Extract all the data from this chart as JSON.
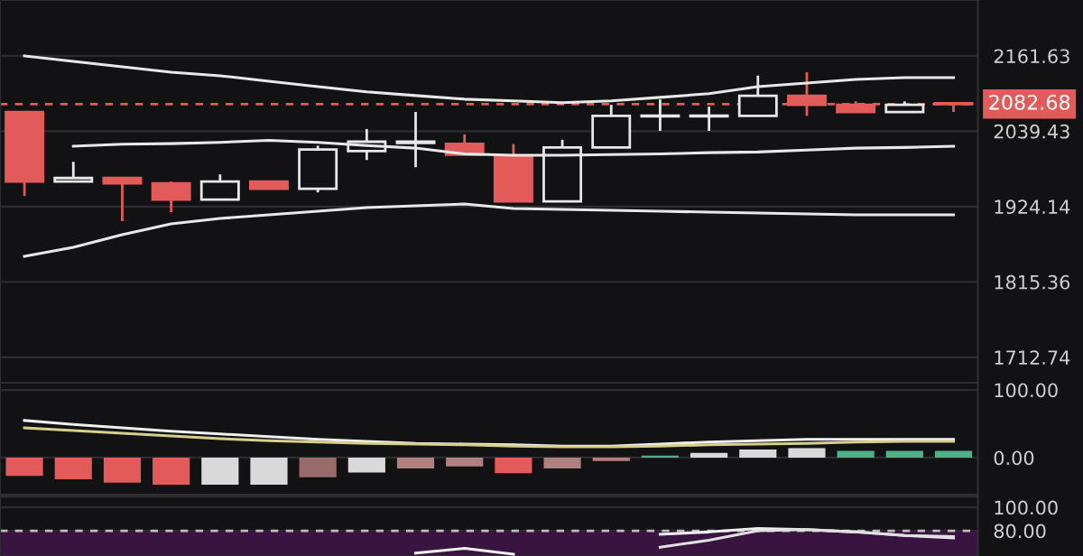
{
  "chart_data": [
    {
      "type": "candlestick",
      "categories": [
        null,
        null,
        null,
        null,
        null,
        null,
        null,
        null,
        null,
        null,
        null,
        null,
        null,
        null,
        null,
        null,
        null,
        null,
        null,
        null
      ],
      "ohlc": [
        [
          2070,
          2070,
          1940,
          1961.6
        ],
        [
          1961.6,
          1991.8,
          1961.6,
          1967
        ],
        [
          1967,
          1967,
          1902.5,
          1958.9
        ],
        [
          1958.9,
          1961.6,
          1915.8,
          1934.5
        ],
        [
          1934.5,
          1972.5,
          1934.5,
          1961.6
        ],
        [
          1961.6,
          1961.6,
          1950.7,
          1950.7
        ],
        [
          1950.7,
          2016.7,
          1945.3,
          2011
        ],
        [
          2008.5,
          2043,
          1994.6,
          2023
        ],
        [
          2021,
          2070,
          1983.5,
          2023
        ],
        [
          2019.5,
          2034.6,
          2003,
          2003
        ],
        [
          2000,
          2019.5,
          1931.8,
          1931.8
        ],
        [
          1931.8,
          2026,
          1931.8,
          2013.9
        ],
        [
          2013.9,
          2081.4,
          2013.9,
          2063.7
        ],
        [
          2063,
          2090,
          2040,
          2064
        ],
        [
          2063,
          2078.5,
          2040,
          2064
        ],
        [
          2063.7,
          2129,
          2063.7,
          2096
        ],
        [
          2096,
          2134.6,
          2063.7,
          2081.4
        ],
        [
          2081.4,
          2087,
          2070,
          2070
        ],
        [
          2070,
          2087,
          2070,
          2081.4
        ],
        [
          2084,
          2084,
          2070,
          2082.68
        ]
      ],
      "colors": [
        "#e35a5a",
        "#e8e8e8",
        "#e35a5a",
        "#e35a5a",
        "#e8e8e8",
        "#e35a5a",
        "#e8e8e8",
        "#e8e8e8",
        "#e8e8e8",
        "#e35a5a",
        "#e35a5a",
        "#e8e8e8",
        "#e8e8e8",
        "#e8e8e8",
        "#e8e8e8",
        "#e8e8e8",
        "#e35a5a",
        "#e35a5a",
        "#e8e8e8",
        "#e35a5a"
      ],
      "series": [
        {
          "type": "line",
          "color": "#e8e8e8",
          "values": [
            2161.6,
            2152.6,
            2143.6,
            2134.6,
            2128.7,
            2119.8,
            2111,
            2102.3,
            2096.4,
            2090.6,
            2087.7,
            2084.8,
            2087.7,
            2093.5,
            2099.4,
            2111,
            2116.9,
            2122.7,
            2125.7,
            2125.7
          ]
        },
        {
          "type": "line",
          "color": "#e8e8e8",
          "values": [
            null,
            2016,
            2019,
            2020,
            2022,
            2025,
            2022,
            2017,
            2013,
            2004,
            2002,
            2002,
            2003,
            2004,
            2006,
            2007,
            2010,
            2013,
            2014,
            2016
          ]
        },
        {
          "type": "line",
          "color": "#e8e8e8",
          "values": [
            1851.5,
            1864.5,
            1882.8,
            1898.6,
            1906.6,
            1911.9,
            1917.2,
            1922.6,
            1925.3,
            1928,
            1921.3,
            1920,
            1918.6,
            1917.2,
            1915.9,
            1914.6,
            1913.3,
            1911.9,
            1911.9,
            1911.9
          ]
        }
      ],
      "log": true,
      "ylim": [
        1679.4,
        2257
      ],
      "yticks": [
        2161.63,
        2039.43,
        1924.14,
        1815.36,
        1712.74
      ],
      "ref_lines": [
        {
          "axis": "y",
          "value": 2082.68,
          "label": "2082.68",
          "color": "#e35a5a",
          "line_style": "dashed"
        }
      ],
      "grid": "y",
      "tick_labels": "y"
    },
    {
      "type": "bar",
      "categories": [
        null,
        null,
        null,
        null,
        null,
        null,
        null,
        null,
        null,
        null,
        null,
        null,
        null,
        null,
        null,
        null,
        null,
        null,
        null,
        null
      ],
      "series": [
        {
          "type": "bar",
          "values": [
            -27,
            -32,
            -37,
            -40,
            -40,
            -40,
            -29,
            -22,
            -16,
            -13,
            -23,
            -16,
            -5,
            3,
            7,
            12,
            14,
            10,
            10,
            10
          ],
          "colors": [
            "#e35a5a",
            "#e35a5a",
            "#e35a5a",
            "#e35a5a",
            "#d9d9d9",
            "#d9d9d9",
            "#9a6b6b",
            "#d9d9d9",
            "#b08080",
            "#b08080",
            "#e35a5a",
            "#b08080",
            "#b08080",
            "#4fb08a",
            "#d9d9d9",
            "#d9d9d9",
            "#d9d9d9",
            "#4fb08a",
            "#4fb08a",
            "#4fb08a"
          ]
        },
        {
          "type": "line",
          "color": "#f0f0f0",
          "values": [
            55,
            49,
            44,
            39,
            35,
            31,
            27,
            24,
            21,
            20,
            19,
            17,
            17,
            20,
            23,
            25,
            27,
            27,
            27,
            27
          ]
        },
        {
          "type": "line",
          "color": "#d8cf8a",
          "values": [
            44,
            40,
            36,
            32,
            28,
            25,
            23,
            21,
            20,
            19,
            17,
            16,
            16,
            17,
            19,
            20,
            21,
            23,
            24,
            24
          ]
        }
      ],
      "ylim": [
        -54.7,
        110.7
      ],
      "yticks": [
        {
          "value": 100,
          "label": "100.00"
        },
        {
          "value": 0,
          "label": "0.00"
        }
      ],
      "grid": "y",
      "tick_labels": "y"
    },
    {
      "type": "line",
      "categories": [
        null,
        null,
        null,
        null,
        null,
        null,
        null,
        null,
        null,
        null,
        null,
        null,
        null,
        null,
        null,
        null,
        null,
        null,
        null,
        null
      ],
      "series": [
        {
          "type": "line",
          "color": "#f0f0f0",
          "values": [
            null,
            null,
            null,
            null,
            null,
            null,
            null,
            null,
            61,
            65,
            60,
            null,
            null,
            77,
            79,
            82,
            81,
            79,
            76,
            74
          ]
        },
        {
          "type": "line",
          "color": "#e0e0e0",
          "values": [
            null,
            null,
            null,
            null,
            null,
            null,
            null,
            null,
            null,
            null,
            null,
            null,
            null,
            66,
            72,
            80,
            81,
            79,
            76,
            75
          ]
        }
      ],
      "ylim": [
        58.5,
        109.2
      ],
      "yticks": [
        {
          "value": 100,
          "label": "100.00"
        },
        {
          "value": 80,
          "label": "80.00"
        }
      ],
      "ref_lines": [
        {
          "axis": "y",
          "value": 80,
          "label": null,
          "color": "#bdbdbd",
          "line_style": "dashed"
        }
      ],
      "bands": [
        {
          "axis": "y",
          "from": 58.5,
          "to": 80,
          "label": null,
          "color": "#3a1440"
        }
      ],
      "grid": "y",
      "tick_labels": "y"
    }
  ]
}
